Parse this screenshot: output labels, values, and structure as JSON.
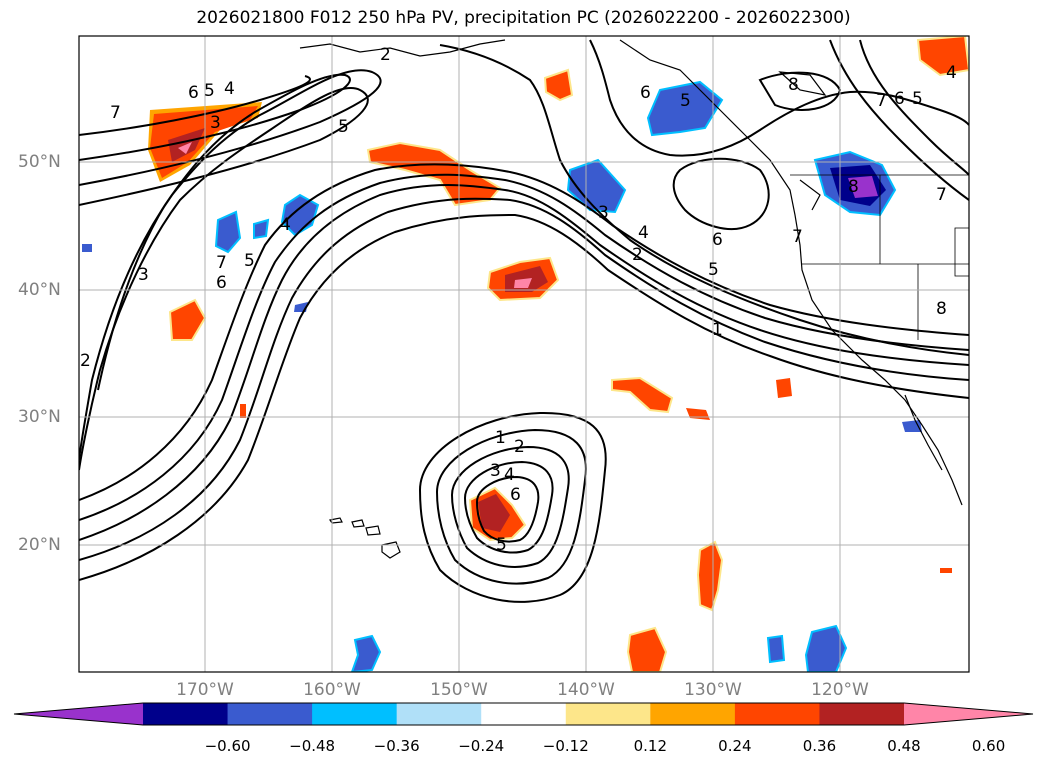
{
  "title": "2026021800 F012 250 hPa PV, precipitation PC (2026022200 - 2026022300)",
  "lat_labels": [
    "50°N",
    "40°N",
    "30°N",
    "20°N"
  ],
  "lon_labels": [
    "170°W",
    "160°W",
    "150°W",
    "140°W",
    "130°W",
    "120°W"
  ],
  "colorbar": {
    "ticks": [
      "−0.60",
      "−0.48",
      "−0.36",
      "−0.24",
      "−0.12",
      "0.12",
      "0.24",
      "0.36",
      "0.48",
      "0.60"
    ],
    "colors": [
      "#9932cc",
      "#00008b",
      "#3a5bcf",
      "#00bfff",
      "#b0e0f8",
      "#ffffff",
      "#fde68a",
      "#ffa500",
      "#ff4500",
      "#b22222",
      "#ff85a8"
    ]
  },
  "contour_labels": [
    "1",
    "2",
    "3",
    "4",
    "5",
    "6",
    "7",
    "8"
  ],
  "colors": {
    "contour": "#000000",
    "grid": "#b0b0b0",
    "axis_label": "#808080"
  }
}
